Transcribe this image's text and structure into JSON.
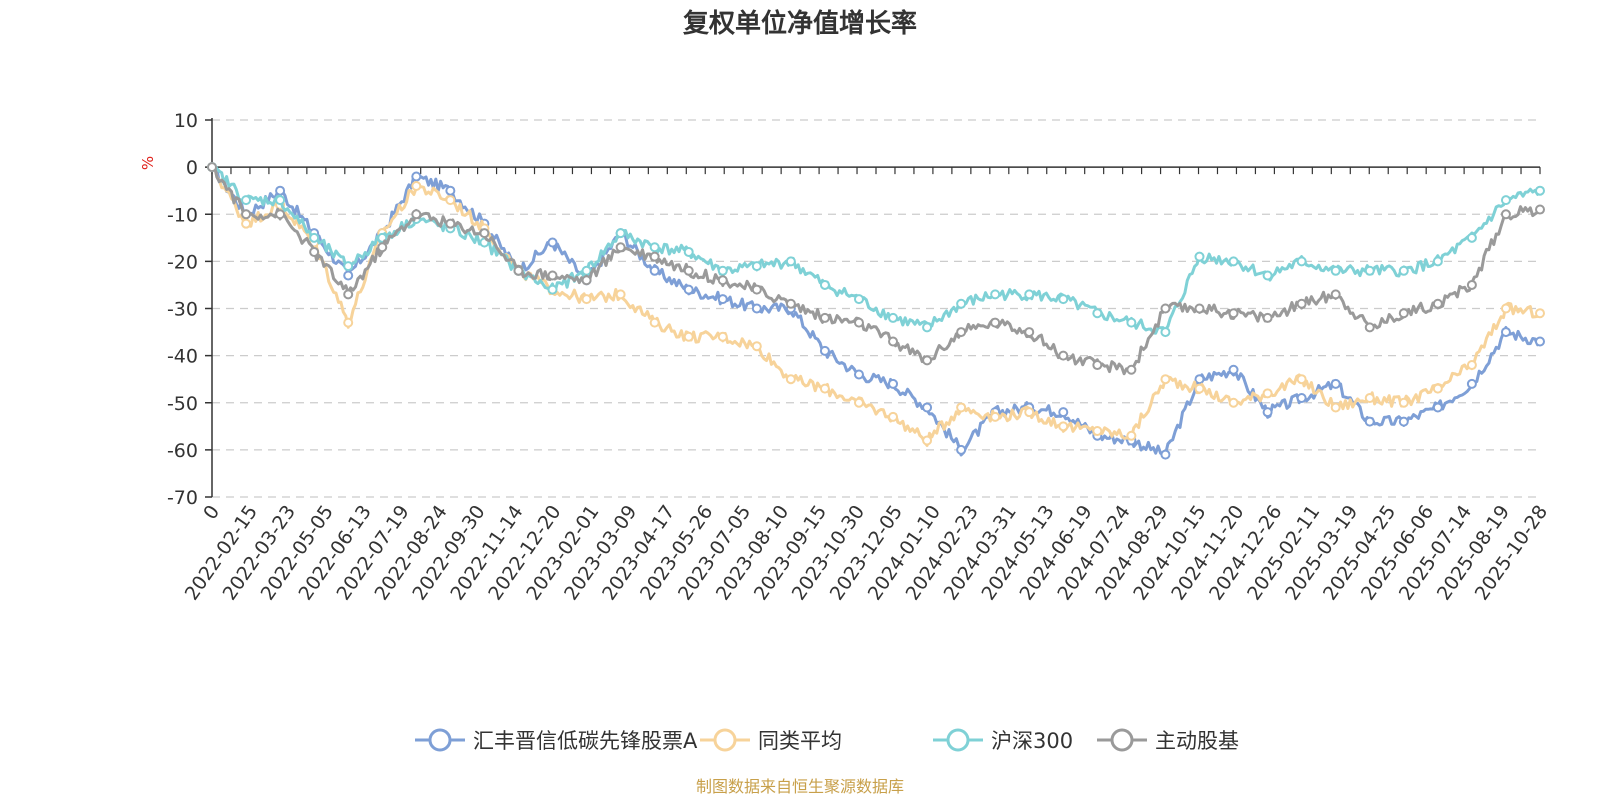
{
  "chart_data": {
    "type": "line",
    "title": "复权单位净值增长率",
    "ylabel": "%",
    "xlabel": "",
    "ylim": [
      -70,
      10
    ],
    "yticks": [
      10,
      0,
      -10,
      -20,
      -30,
      -40,
      -50,
      -60,
      -70
    ],
    "x_tick_labels": [
      "0",
      "2022-02-15",
      "2022-03-23",
      "2022-05-05",
      "2022-06-13",
      "2022-07-19",
      "2022-08-24",
      "2022-09-30",
      "2022-11-14",
      "2022-12-20",
      "2023-02-01",
      "2023-03-09",
      "2023-04-17",
      "2023-05-26",
      "2023-07-05",
      "2023-08-10",
      "2023-09-15",
      "2023-10-30",
      "2023-12-05",
      "2024-01-10",
      "2024-02-23",
      "2024-03-31",
      "2024-05-13",
      "2024-06-19",
      "2024-07-24",
      "2024-08-29",
      "2024-10-15",
      "2024-11-20",
      "2024-12-26",
      "2025-02-11",
      "2025-03-19",
      "2025-04-25",
      "2025-06-06",
      "2025-07-14",
      "2025-08-19",
      "2025-10-28"
    ],
    "legend_position": "bottom",
    "grid": true,
    "series": [
      {
        "name": "汇丰晋信低碳先锋股票A",
        "color": "#7e9fd6",
        "values": [
          0,
          -10,
          -5,
          -14,
          -23,
          -14,
          -2,
          -5,
          -12,
          -22,
          -16,
          -24,
          -14,
          -22,
          -26,
          -28,
          -30,
          -30,
          -39,
          -44,
          -46,
          -51,
          -60,
          -52,
          -51,
          -52,
          -57,
          -58,
          -61,
          -45,
          -43,
          -52,
          -49,
          -46,
          -54,
          -54,
          -51,
          -46,
          -35,
          -37
        ]
      },
      {
        "name": "同类平均",
        "color": "#f7d39a",
        "values": [
          0,
          -12,
          -8,
          -16,
          -33,
          -14,
          -4,
          -7,
          -13,
          -22,
          -26,
          -28,
          -27,
          -33,
          -36,
          -36,
          -38,
          -45,
          -47,
          -50,
          -53,
          -58,
          -51,
          -53,
          -52,
          -55,
          -56,
          -57,
          -45,
          -47,
          -50,
          -48,
          -45,
          -51,
          -49,
          -50,
          -47,
          -42,
          -30,
          -31
        ]
      },
      {
        "name": "沪深300",
        "color": "#7fd1d6",
        "values": [
          0,
          -7,
          -7,
          -15,
          -21,
          -15,
          -11,
          -13,
          -16,
          -22,
          -26,
          -22,
          -14,
          -17,
          -18,
          -22,
          -21,
          -20,
          -25,
          -28,
          -32,
          -34,
          -29,
          -27,
          -27,
          -28,
          -31,
          -33,
          -35,
          -19,
          -20,
          -23,
          -20,
          -22,
          -22,
          -22,
          -20,
          -15,
          -7,
          -5
        ]
      },
      {
        "name": "主动股基",
        "color": "#9a9a9a",
        "values": [
          0,
          -10,
          -10,
          -18,
          -27,
          -17,
          -10,
          -12,
          -14,
          -22,
          -23,
          -24,
          -17,
          -19,
          -22,
          -24,
          -26,
          -29,
          -32,
          -33,
          -37,
          -41,
          -35,
          -33,
          -35,
          -40,
          -42,
          -43,
          -30,
          -30,
          -31,
          -32,
          -29,
          -27,
          -34,
          -31,
          -29,
          -25,
          -10,
          -9
        ]
      }
    ]
  },
  "legend": {
    "items": [
      {
        "label": "汇丰晋信低碳先锋股票A"
      },
      {
        "label": "同类平均"
      },
      {
        "label": "沪深300"
      },
      {
        "label": "主动股基"
      }
    ]
  },
  "source_text": "制图数据来自恒生聚源数据库"
}
